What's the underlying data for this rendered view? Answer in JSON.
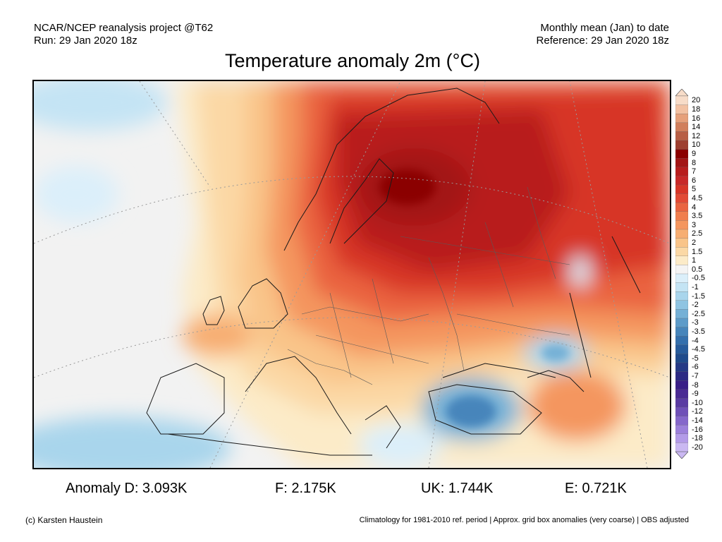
{
  "header": {
    "left_line1": "NCAR/NCEP reanalysis project @T62",
    "left_line2": "Run: 29 Jan 2020 18z",
    "right_line1": "Monthly mean (Jan) to date",
    "right_line2": "Reference: 29 Jan 2020 18z"
  },
  "title": "Temperature anomaly 2m (°C)",
  "legend": {
    "labels": [
      "20",
      "18",
      "16",
      "14",
      "12",
      "10",
      "9",
      "8",
      "7",
      "6",
      "5",
      "4.5",
      "4",
      "3.5",
      "3",
      "2.5",
      "2",
      "1.5",
      "1",
      "0.5",
      "-0.5",
      "-1",
      "-1.5",
      "-2",
      "-2.5",
      "-3",
      "-3.5",
      "-4",
      "-4.5",
      "-5",
      "-6",
      "-7",
      "-8",
      "-9",
      "-10",
      "-12",
      "-14",
      "-16",
      "-18",
      "-20"
    ],
    "colors": [
      "#f7dcc8",
      "#f2c1a2",
      "#e6a07a",
      "#d17f5c",
      "#b85f45",
      "#9e3f30",
      "#8b0000",
      "#a31515",
      "#b81d1d",
      "#c82828",
      "#d73527",
      "#e24a35",
      "#ea6440",
      "#f07e4e",
      "#f4965e",
      "#f7ae72",
      "#f9c489",
      "#fbd8a5",
      "#fcebc8",
      "#f4f4f4",
      "#dbeffa",
      "#c4e4f4",
      "#a9d5ec",
      "#8fc4e2",
      "#74b0d6",
      "#5c9bc9",
      "#4685bb",
      "#3470ad",
      "#275c9c",
      "#1f4b8c",
      "#253a86",
      "#2c2a84",
      "#3a1f87",
      "#4a2a94",
      "#5a3ba3",
      "#6f50b8",
      "#8567cb",
      "#9c80db",
      "#b39be8",
      "#cab8f2"
    ],
    "tip_top": "#f7dcc8",
    "tip_bottom": "#cab8f2"
  },
  "stats": {
    "d": "Anomaly D: 3.093K",
    "f": "F: 2.175K",
    "uk": "UK: 1.744K",
    "e": "E: 0.721K"
  },
  "footer": {
    "credit": "(c) Karsten Haustein",
    "footnote": "Climatology for 1981-2010 ref. period | Approx. grid box anomalies (very coarse) | OBS adjusted"
  }
}
